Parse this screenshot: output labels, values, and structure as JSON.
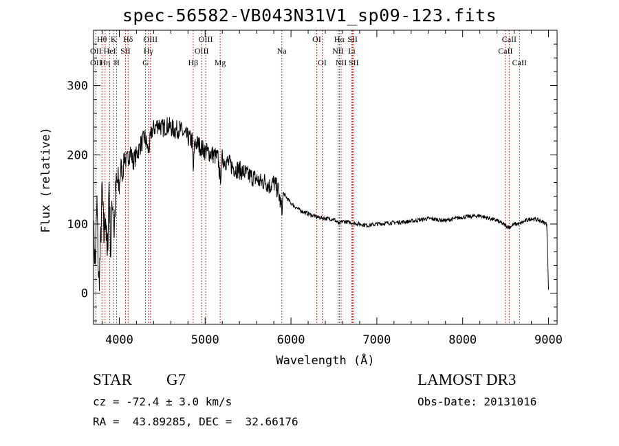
{
  "chart_data": {
    "type": "line",
    "title": "spec-56582-VB043N31V1_sp09-123.fits",
    "xlabel": "Wavelength (Å)",
    "ylabel": "Flux (relative)",
    "xlim": [
      3700,
      9100
    ],
    "ylim": [
      -45,
      380
    ],
    "xticks": [
      4000,
      5000,
      6000,
      7000,
      8000,
      9000
    ],
    "xtick_labels": [
      "4000",
      "5000",
      "6000",
      "7000",
      "8000",
      "9000"
    ],
    "yticks": [
      0,
      100,
      200,
      300
    ],
    "ytick_labels": [
      "0",
      "100",
      "200",
      "300"
    ],
    "series": [
      {
        "name": "flux",
        "x": [
          3700,
          3720,
          3740,
          3760,
          3780,
          3800,
          3820,
          3840,
          3860,
          3880,
          3900,
          3920,
          3940,
          3960,
          3980,
          4000,
          4020,
          4040,
          4060,
          4080,
          4100,
          4130,
          4160,
          4200,
          4250,
          4300,
          4340,
          4380,
          4420,
          4460,
          4500,
          4550,
          4600,
          4650,
          4700,
          4750,
          4800,
          4850,
          4861,
          4880,
          4920,
          4960,
          5000,
          5050,
          5100,
          5150,
          5175,
          5200,
          5250,
          5300,
          5350,
          5400,
          5450,
          5500,
          5550,
          5600,
          5650,
          5700,
          5750,
          5800,
          5850,
          5893,
          5910,
          5950,
          6000,
          6100,
          6200,
          6300,
          6400,
          6500,
          6562,
          6600,
          6700,
          6800,
          6900,
          7000,
          7200,
          7400,
          7600,
          7800,
          8000,
          8200,
          8400,
          8498,
          8542,
          8600,
          8662,
          8700,
          8800,
          8900,
          8980,
          9000
        ],
        "y": [
          90,
          40,
          130,
          10,
          60,
          150,
          80,
          120,
          40,
          160,
          60,
          140,
          90,
          150,
          160,
          150,
          185,
          170,
          200,
          190,
          195,
          205,
          190,
          200,
          215,
          225,
          205,
          235,
          240,
          245,
          238,
          242,
          240,
          235,
          238,
          230,
          225,
          220,
          175,
          218,
          215,
          210,
          205,
          203,
          200,
          195,
          165,
          195,
          190,
          185,
          180,
          178,
          175,
          170,
          168,
          165,
          160,
          162,
          155,
          160,
          148,
          120,
          145,
          138,
          130,
          120,
          115,
          110,
          108,
          107,
          100,
          104,
          102,
          100,
          98,
          100,
          102,
          104,
          108,
          105,
          110,
          112,
          105,
          98,
          95,
          100,
          100,
          103,
          108,
          105,
          100,
          5
        ]
      }
    ],
    "line_labels": [
      {
        "label": "Hθ",
        "wl": 3798,
        "row": 1
      },
      {
        "label": "OII",
        "wl": 3727,
        "row": 2
      },
      {
        "label": "OII",
        "wl": 3727,
        "row": 3
      },
      {
        "label": "K",
        "wl": 3934,
        "row": 1
      },
      {
        "label": "HeI",
        "wl": 3889,
        "row": 2
      },
      {
        "label": "Hη",
        "wl": 3835,
        "row": 3
      },
      {
        "label": "H",
        "wl": 3969,
        "row": 3
      },
      {
        "label": "Hδ",
        "wl": 4102,
        "row": 1
      },
      {
        "label": "SII",
        "wl": 4072,
        "row": 2
      },
      {
        "label": "OIII",
        "wl": 4363,
        "row": 1
      },
      {
        "label": "Hγ",
        "wl": 4340,
        "row": 2
      },
      {
        "label": "G",
        "wl": 4305,
        "row": 3
      },
      {
        "label": "OIII",
        "wl": 5007,
        "row": 1
      },
      {
        "label": "OIII",
        "wl": 4959,
        "row": 2
      },
      {
        "label": "Hβ",
        "wl": 4861,
        "row": 3
      },
      {
        "label": "Mg",
        "wl": 5175,
        "row": 3
      },
      {
        "label": "Na",
        "wl": 5893,
        "row": 2
      },
      {
        "label": "OI",
        "wl": 6300,
        "row": 1
      },
      {
        "label": "OI",
        "wl": 6364,
        "row": 3
      },
      {
        "label": "Hα",
        "wl": 6563,
        "row": 1
      },
      {
        "label": "NII",
        "wl": 6548,
        "row": 2
      },
      {
        "label": "NII",
        "wl": 6584,
        "row": 3
      },
      {
        "label": "SII",
        "wl": 6717,
        "row": 1
      },
      {
        "label": "Li",
        "wl": 6708,
        "row": 2
      },
      {
        "label": "SII",
        "wl": 6731,
        "row": 3
      },
      {
        "label": "CaII",
        "wl": 8542,
        "row": 1
      },
      {
        "label": "CaII",
        "wl": 8498,
        "row": 2
      },
      {
        "label": "CaII",
        "wl": 8662,
        "row": 3
      }
    ],
    "line_positions": [
      3727,
      3798,
      3835,
      3889,
      3934,
      3969,
      4072,
      4102,
      4305,
      4340,
      4363,
      4861,
      4959,
      5007,
      5175,
      5893,
      6300,
      6364,
      6548,
      6563,
      6584,
      6708,
      6717,
      6731,
      8498,
      8542,
      8662
    ]
  },
  "info": {
    "class_label": "STAR",
    "subclass": "G7",
    "survey": "LAMOST DR3",
    "cz": "cz = -72.4 ± 3.0 km/s",
    "obs_date": "Obs-Date: 20131016",
    "coords": "RA =  43.89285, DEC =  32.66176"
  },
  "colors": {
    "line_marker": "#c0392b",
    "spectrum": "#000000"
  }
}
